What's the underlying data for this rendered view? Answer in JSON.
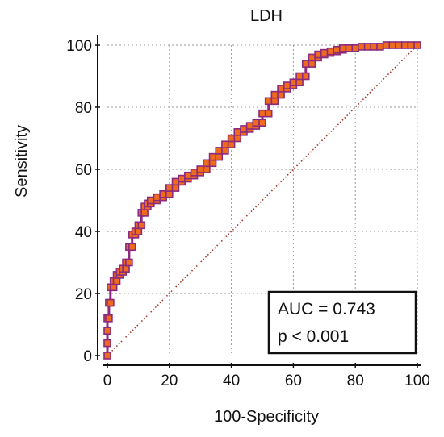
{
  "chart_data": {
    "type": "line",
    "title": "LDH",
    "xlabel": "100-Specificity",
    "ylabel": "Sensitivity",
    "xlim": [
      0,
      100
    ],
    "ylim": [
      0,
      100
    ],
    "xticks": [
      0,
      20,
      40,
      60,
      80,
      100
    ],
    "yticks": [
      0,
      20,
      40,
      60,
      80,
      100
    ],
    "grid": true,
    "series": [
      {
        "type": "line",
        "markers": "square",
        "color": "#8b2a7f",
        "marker_fill": "#ee6a1c",
        "x": [
          0,
          0,
          0,
          0,
          0.5,
          0.5,
          1,
          1,
          2,
          2,
          3,
          3,
          4,
          4,
          5,
          5,
          6,
          6,
          7,
          7,
          8,
          8,
          9,
          9,
          10,
          10,
          11,
          11,
          12,
          12,
          13,
          13,
          14,
          14,
          16,
          16,
          18,
          18,
          20,
          20,
          22,
          22,
          24,
          24,
          26,
          26,
          28,
          28,
          30,
          30,
          32,
          32,
          34,
          34,
          36,
          36,
          38,
          38,
          40,
          40,
          42,
          42,
          44,
          44,
          46,
          46,
          48,
          48,
          50,
          50,
          52,
          52,
          54,
          54,
          56,
          56,
          58,
          58,
          60,
          60,
          62,
          62,
          64,
          64,
          66,
          66,
          68,
          68,
          70,
          70,
          72,
          72,
          74,
          74,
          76,
          76,
          78,
          78,
          80,
          82,
          84,
          86,
          88,
          90,
          92,
          94,
          96,
          98,
          100
        ],
        "y": [
          0,
          4,
          8,
          12,
          12,
          17,
          17,
          22,
          22,
          24,
          24,
          26,
          26,
          27,
          27,
          28,
          28,
          30,
          30,
          35,
          35,
          39,
          39,
          40,
          40,
          42,
          42,
          46,
          46,
          48,
          48,
          49,
          49,
          50,
          50,
          51,
          51,
          52,
          52,
          54,
          54,
          56,
          56,
          57,
          57,
          58,
          58,
          59,
          59,
          60,
          60,
          62,
          62,
          64,
          64,
          66,
          66,
          68,
          68,
          70,
          70,
          72,
          72,
          73,
          73,
          74,
          74,
          75,
          75,
          78,
          78,
          82,
          82,
          84,
          84,
          86,
          86,
          87,
          87,
          88,
          88,
          90,
          90,
          94,
          94,
          96,
          96,
          97,
          97,
          97.5,
          97.5,
          98,
          98,
          98.5,
          98.5,
          99,
          99,
          99,
          99,
          99.5,
          99.5,
          99.5,
          99.5,
          100,
          100,
          100,
          100,
          100,
          100
        ]
      },
      {
        "type": "line",
        "style": "dotted",
        "color": "#a0392b",
        "x": [
          0,
          100
        ],
        "y": [
          0,
          100
        ]
      }
    ],
    "annotations": [
      "AUC = 0.743",
      "p < 0.001"
    ]
  }
}
